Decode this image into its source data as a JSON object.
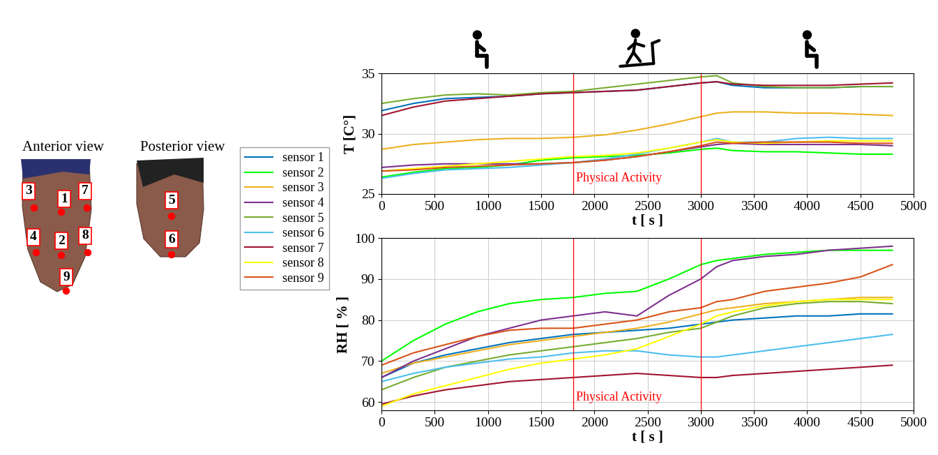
{
  "diagram": {
    "views": [
      {
        "title": "Anterior view",
        "sensors": [
          "3",
          "1",
          "7",
          "4",
          "2",
          "8",
          "9"
        ]
      },
      {
        "title": "Posterior view",
        "sensors": [
          "5",
          "6"
        ]
      }
    ]
  },
  "chart_data": [
    {
      "type": "line",
      "x_label": "t [ s ]",
      "y_label": "T [C°]",
      "x": [
        0,
        300,
        600,
        900,
        1200,
        1500,
        1800,
        2100,
        2400,
        2700,
        3000,
        3150,
        3300,
        3600,
        3900,
        4200,
        4500,
        4800
      ],
      "xlim": [
        0,
        5000
      ],
      "xticks": [
        0,
        500,
        1000,
        1500,
        2000,
        2500,
        3000,
        3500,
        4000,
        4500,
        5000
      ],
      "ylim": [
        25,
        35
      ],
      "yticks": [
        25,
        30,
        35
      ],
      "grid": true,
      "legend": "center left",
      "vlines": [
        1800,
        3000
      ],
      "annotations": [
        {
          "text": "Physical Activity",
          "x": 1830,
          "y": 26.3
        }
      ],
      "series": [
        {
          "name": "sensor 1",
          "color": "#0072BD",
          "values": [
            31.9,
            32.5,
            32.9,
            33.0,
            33.1,
            33.3,
            33.4,
            33.5,
            33.6,
            33.9,
            34.2,
            34.3,
            34.0,
            33.8,
            33.8,
            33.8,
            33.9,
            33.9
          ]
        },
        {
          "name": "sensor 2",
          "color": "#00FF00",
          "values": [
            26.4,
            26.8,
            27.1,
            27.2,
            27.4,
            27.8,
            28.0,
            28.1,
            28.2,
            28.4,
            28.7,
            28.8,
            28.6,
            28.5,
            28.5,
            28.4,
            28.3,
            28.3
          ]
        },
        {
          "name": "sensor 3",
          "color": "#EDB120",
          "values": [
            28.7,
            29.1,
            29.3,
            29.5,
            29.6,
            29.6,
            29.7,
            29.9,
            30.3,
            30.8,
            31.4,
            31.7,
            31.8,
            31.8,
            31.7,
            31.7,
            31.6,
            31.5
          ]
        },
        {
          "name": "sensor 4",
          "color": "#7E2F8E",
          "values": [
            27.2,
            27.4,
            27.5,
            27.5,
            27.5,
            27.5,
            27.6,
            27.8,
            28.1,
            28.5,
            28.9,
            29.1,
            29.2,
            29.1,
            29.1,
            29.1,
            29.1,
            29.0
          ]
        },
        {
          "name": "sensor 5",
          "color": "#77AC30",
          "values": [
            32.5,
            32.9,
            33.2,
            33.3,
            33.2,
            33.4,
            33.5,
            33.8,
            34.1,
            34.4,
            34.7,
            34.8,
            34.2,
            33.9,
            33.8,
            33.8,
            33.9,
            33.9
          ]
        },
        {
          "name": "sensor 6",
          "color": "#4DBEEE",
          "values": [
            26.3,
            26.7,
            27.0,
            27.1,
            27.2,
            27.4,
            27.6,
            27.9,
            28.3,
            28.8,
            29.3,
            29.6,
            29.3,
            29.3,
            29.6,
            29.7,
            29.6,
            29.6
          ]
        },
        {
          "name": "sensor 7",
          "color": "#A2142F",
          "values": [
            31.5,
            32.2,
            32.7,
            32.9,
            33.1,
            33.3,
            33.4,
            33.5,
            33.6,
            33.9,
            34.2,
            34.3,
            34.1,
            34.0,
            34.0,
            34.0,
            34.1,
            34.2
          ]
        },
        {
          "name": "sensor 8",
          "color": "#FFFF00",
          "values": [
            26.9,
            27.1,
            27.3,
            27.5,
            27.7,
            27.9,
            28.1,
            28.2,
            28.4,
            28.8,
            29.3,
            29.5,
            29.3,
            29.2,
            29.3,
            29.4,
            29.4,
            29.4
          ]
        },
        {
          "name": "sensor 9",
          "color": "#D95319",
          "values": [
            26.9,
            27.0,
            27.2,
            27.3,
            27.4,
            27.5,
            27.6,
            27.8,
            28.1,
            28.5,
            29.0,
            29.3,
            29.2,
            29.3,
            29.3,
            29.3,
            29.2,
            29.2
          ]
        }
      ]
    },
    {
      "type": "line",
      "x_label": "t [ s ]",
      "y_label": "RH [ % ]",
      "x": [
        0,
        300,
        600,
        900,
        1200,
        1500,
        1800,
        2100,
        2400,
        2700,
        3000,
        3150,
        3300,
        3600,
        3900,
        4200,
        4500,
        4800
      ],
      "xlim": [
        0,
        5000
      ],
      "xticks": [
        0,
        500,
        1000,
        1500,
        2000,
        2500,
        3000,
        3500,
        4000,
        4500,
        5000
      ],
      "ylim": [
        58,
        100
      ],
      "yticks": [
        60,
        70,
        80,
        90,
        100
      ],
      "grid": true,
      "vlines": [
        1800,
        3000
      ],
      "annotations": [
        {
          "text": "Physical Activity",
          "x": 1830,
          "y": 61.2
        }
      ],
      "series": [
        {
          "name": "sensor 1",
          "color": "#0072BD",
          "values": [
            66,
            69.5,
            71.5,
            73,
            74.5,
            75.5,
            76.5,
            77,
            77.5,
            78,
            79,
            79.5,
            80,
            80.5,
            81,
            81,
            81.5,
            81.5
          ]
        },
        {
          "name": "sensor 2",
          "color": "#00FF00",
          "values": [
            70,
            75,
            79,
            82,
            84,
            85,
            85.5,
            86.5,
            87,
            90,
            93.5,
            94.5,
            95,
            96,
            96.5,
            97,
            97,
            97
          ]
        },
        {
          "name": "sensor 3",
          "color": "#EDB120",
          "values": [
            67,
            69.5,
            71,
            72.5,
            74,
            75,
            76,
            77,
            78,
            79.5,
            81.5,
            82.5,
            83,
            84,
            84.5,
            85,
            85.5,
            85.5
          ]
        },
        {
          "name": "sensor 4",
          "color": "#7E2F8E",
          "values": [
            66,
            70,
            73,
            76,
            78,
            80,
            81,
            82,
            81,
            86,
            90,
            93,
            94.5,
            95.5,
            96,
            97,
            97.5,
            98
          ]
        },
        {
          "name": "sensor 5",
          "color": "#77AC30",
          "values": [
            63,
            66,
            68.5,
            70,
            71.5,
            72.5,
            73.5,
            74.5,
            75.5,
            77,
            78,
            79.5,
            81,
            83,
            84,
            84.5,
            84.5,
            84
          ]
        },
        {
          "name": "sensor 6",
          "color": "#4DBEEE",
          "values": [
            65,
            67,
            68.5,
            69.5,
            70.5,
            71,
            72,
            72.5,
            72.5,
            71.5,
            71,
            71,
            71.5,
            72.5,
            73.5,
            74.5,
            75.5,
            76.5
          ]
        },
        {
          "name": "sensor 7",
          "color": "#A2142F",
          "values": [
            59.5,
            61.5,
            63,
            64,
            65,
            65.5,
            66,
            66.5,
            67,
            66.5,
            66,
            66,
            66.5,
            67,
            67.5,
            68,
            68.5,
            69
          ]
        },
        {
          "name": "sensor 8",
          "color": "#FFFF00",
          "values": [
            59,
            62,
            64,
            66,
            68,
            69.5,
            70.5,
            71.5,
            73,
            76,
            79,
            81,
            82,
            83.5,
            84.5,
            85,
            85,
            85
          ]
        },
        {
          "name": "sensor 9",
          "color": "#D95319",
          "values": [
            69,
            72,
            74,
            76,
            77.5,
            78,
            78,
            79,
            80,
            82,
            83,
            84.5,
            85,
            87,
            88,
            89,
            90.5,
            93.5
          ]
        }
      ]
    }
  ]
}
